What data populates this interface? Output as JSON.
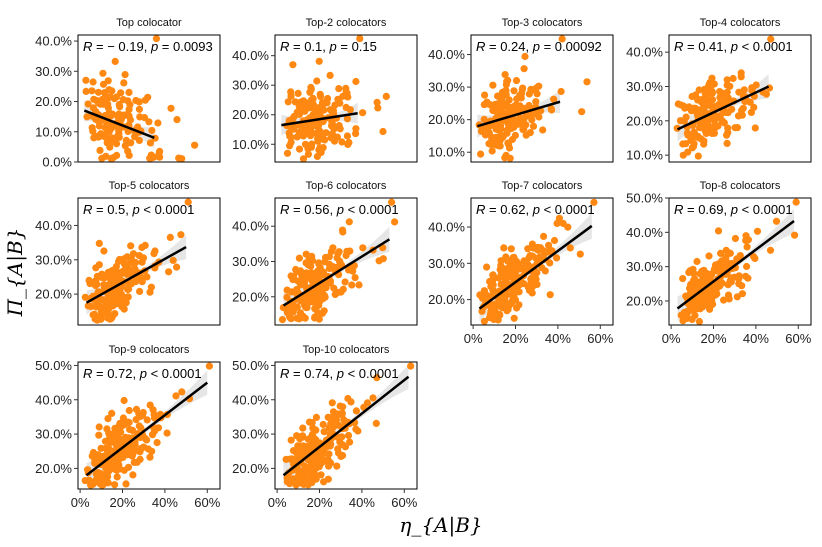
{
  "chart_data": {
    "type": "scatter",
    "ylabel": "Π_{A|B}",
    "xlabel": "η_{A|B}",
    "point_color": "#FF8812",
    "line_color": "#000000",
    "band_color": "#DDDDDD",
    "panels": [
      {
        "title": "Top colocator",
        "annotation": {
          "r_label": "R",
          "r_value": " = − 0.19, ",
          "p_label": "p",
          "p_text": " = 0.0093"
        },
        "ylim": [
          0,
          0.42
        ],
        "yticks": [
          0.0,
          0.1,
          0.2,
          0.3,
          0.4
        ],
        "ytick_labels": [
          "0.0%",
          "10.0%",
          "20.0%",
          "30.0%",
          "40.0%"
        ],
        "xlim": [
          -0.01,
          0.66
        ],
        "fit": {
          "x": [
            0.02,
            0.35
          ],
          "y": [
            0.17,
            0.08
          ]
        },
        "n": 150,
        "spread": 0.07
      },
      {
        "title": "Top-2 colocators",
        "annotation": {
          "r_label": "R",
          "r_value": " = 0.1, ",
          "p_label": "p",
          "p_text": " = 0.15"
        },
        "ylim": [
          0.04,
          0.47
        ],
        "yticks": [
          0.1,
          0.2,
          0.3,
          0.4
        ],
        "ytick_labels": [
          "10.0%",
          "20.0%",
          "30.0%",
          "40.0%"
        ],
        "xlim": [
          -0.01,
          0.66
        ],
        "fit": {
          "x": [
            0.02,
            0.38
          ],
          "y": [
            0.165,
            0.205
          ]
        },
        "n": 160,
        "spread": 0.06
      },
      {
        "title": "Top-3 colocators",
        "annotation": {
          "r_label": "R",
          "r_value": " = 0.24, ",
          "p_label": "p",
          "p_text": " = 0.00092"
        },
        "ylim": [
          0.07,
          0.46
        ],
        "yticks": [
          0.1,
          0.2,
          0.3,
          0.4
        ],
        "ytick_labels": [
          "10.0%",
          "20.0%",
          "30.0%",
          "40.0%"
        ],
        "xlim": [
          -0.01,
          0.66
        ],
        "fit": {
          "x": [
            0.02,
            0.41
          ],
          "y": [
            0.18,
            0.255
          ]
        },
        "n": 170,
        "spread": 0.06
      },
      {
        "title": "Top-4 colocators",
        "annotation": {
          "r_label": "R",
          "r_value": " = 0.41, ",
          "p_label": "p",
          "p_text": " < 0.0001"
        },
        "ylim": [
          0.08,
          0.45
        ],
        "yticks": [
          0.1,
          0.2,
          0.3,
          0.4
        ],
        "ytick_labels": [
          "10.0%",
          "20.0%",
          "30.0%",
          "40.0%"
        ],
        "xlim": [
          -0.01,
          0.66
        ],
        "fit": {
          "x": [
            0.03,
            0.46
          ],
          "y": [
            0.175,
            0.3
          ]
        },
        "n": 170,
        "spread": 0.05
      },
      {
        "title": "Top-5 colocators",
        "annotation": {
          "r_label": "R",
          "r_value": " = 0.5, ",
          "p_label": "p",
          "p_text": " < 0.0001"
        },
        "ylim": [
          0.11,
          0.48
        ],
        "yticks": [
          0.2,
          0.3,
          0.4
        ],
        "ytick_labels": [
          "20.0%",
          "30.0%",
          "40.0%"
        ],
        "xlim": [
          -0.01,
          0.66
        ],
        "fit": {
          "x": [
            0.03,
            0.5
          ],
          "y": [
            0.175,
            0.337
          ]
        },
        "n": 180,
        "spread": 0.045
      },
      {
        "title": "Top-6 colocators",
        "annotation": {
          "r_label": "R",
          "r_value": " = 0.56, ",
          "p_label": "p",
          "p_text": " < 0.0001"
        },
        "ylim": [
          0.12,
          0.48
        ],
        "yticks": [
          0.2,
          0.3,
          0.4
        ],
        "ytick_labels": [
          "20.0%",
          "30.0%",
          "40.0%"
        ],
        "xlim": [
          -0.01,
          0.66
        ],
        "fit": {
          "x": [
            0.03,
            0.53
          ],
          "y": [
            0.175,
            0.363
          ]
        },
        "n": 190,
        "spread": 0.045
      },
      {
        "title": "Top-7 colocators",
        "annotation": {
          "r_label": "R",
          "r_value": " = 0.62, ",
          "p_label": "p",
          "p_text": " < 0.0001"
        },
        "ylim": [
          0.13,
          0.48
        ],
        "yticks": [
          0.2,
          0.3,
          0.4
        ],
        "ytick_labels": [
          "20.0%",
          "30.0%",
          "40.0%"
        ],
        "xlim": [
          -0.01,
          0.66
        ],
        "fit": {
          "x": [
            0.03,
            0.56
          ],
          "y": [
            0.175,
            0.403
          ]
        },
        "xticks": [
          0,
          0.2,
          0.4,
          0.6
        ],
        "xtick_labels": [
          "0%",
          "20%",
          "40%",
          "60%"
        ],
        "n": 200,
        "spread": 0.045
      },
      {
        "title": "Top-8 colocators",
        "annotation": {
          "r_label": "R",
          "r_value": " = 0.69, ",
          "p_label": "p",
          "p_text": " < 0.0001"
        },
        "ylim": [
          0.13,
          0.5
        ],
        "yticks": [
          0.2,
          0.3,
          0.4,
          0.5
        ],
        "ytick_labels": [
          "20.0%",
          "30.0%",
          "40.0%",
          "50.0%"
        ],
        "xlim": [
          -0.01,
          0.66
        ],
        "fit": {
          "x": [
            0.03,
            0.58
          ],
          "y": [
            0.178,
            0.433
          ]
        },
        "xticks": [
          0,
          0.2,
          0.4,
          0.6
        ],
        "xtick_labels": [
          "0%",
          "20%",
          "40%",
          "60%"
        ],
        "n": 210,
        "spread": 0.045
      },
      {
        "title": "Top-9 colocators",
        "annotation": {
          "r_label": "R",
          "r_value": " = 0.72, ",
          "p_label": "p",
          "p_text": " < 0.0001"
        },
        "ylim": [
          0.14,
          0.51
        ],
        "yticks": [
          0.2,
          0.3,
          0.4,
          0.5
        ],
        "ytick_labels": [
          "20.0%",
          "30.0%",
          "40.0%",
          "50.0%"
        ],
        "xlim": [
          -0.01,
          0.66
        ],
        "fit": {
          "x": [
            0.03,
            0.6
          ],
          "y": [
            0.18,
            0.45
          ]
        },
        "xticks": [
          0,
          0.2,
          0.4,
          0.6
        ],
        "xtick_labels": [
          "0%",
          "20%",
          "40%",
          "60%"
        ],
        "n": 210,
        "spread": 0.045
      },
      {
        "title": "Top-10 colocators",
        "annotation": {
          "r_label": "R",
          "r_value": " = 0.74, ",
          "p_label": "p",
          "p_text": " < 0.0001"
        },
        "ylim": [
          0.14,
          0.51
        ],
        "yticks": [
          0.2,
          0.3,
          0.4,
          0.5
        ],
        "ytick_labels": [
          "20.0%",
          "30.0%",
          "40.0%",
          "50.0%"
        ],
        "xlim": [
          -0.01,
          0.66
        ],
        "fit": {
          "x": [
            0.03,
            0.62
          ],
          "y": [
            0.18,
            0.467
          ]
        },
        "xticks": [
          0,
          0.2,
          0.4,
          0.6
        ],
        "xtick_labels": [
          "0%",
          "20%",
          "40%",
          "60%"
        ],
        "n": 210,
        "spread": 0.045
      }
    ]
  }
}
